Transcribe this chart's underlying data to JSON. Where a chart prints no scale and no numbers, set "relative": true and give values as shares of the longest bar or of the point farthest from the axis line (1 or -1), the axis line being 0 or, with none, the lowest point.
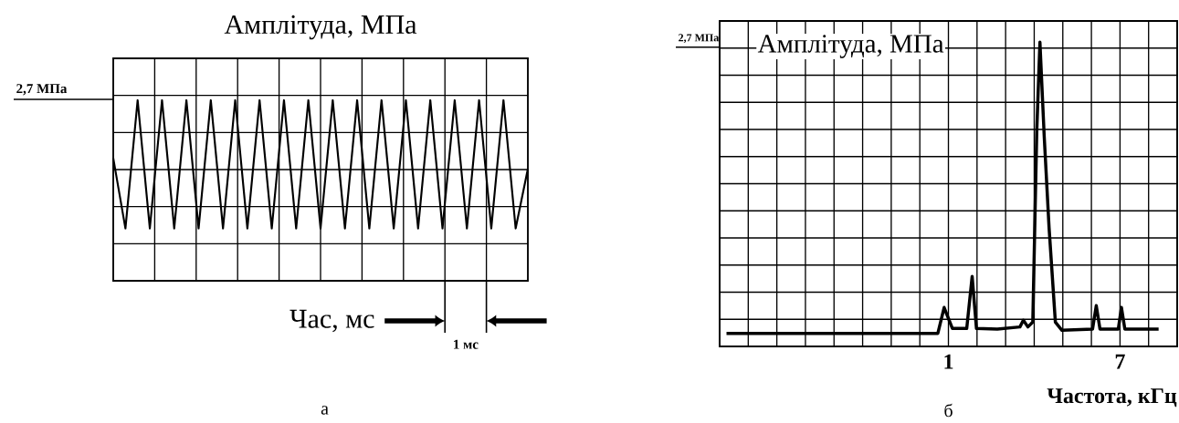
{
  "chart_data": [
    {
      "type": "line",
      "title": "Амплітуда, МПа",
      "xlabel": "Час, мс",
      "relative": true,
      "grid": true,
      "color": "#000000",
      "categories": [
        null,
        null,
        null,
        null,
        null,
        null,
        null,
        null,
        null,
        null,
        null,
        null,
        null,
        null,
        null,
        null,
        null,
        null,
        null,
        null,
        null,
        null,
        null,
        null,
        null,
        null,
        null,
        null,
        null,
        null,
        null,
        null,
        null,
        null,
        null
      ],
      "values": [
        0.68,
        0.29,
        1,
        0.29,
        1,
        0.29,
        1,
        0.29,
        1,
        0.29,
        1,
        0.29,
        1,
        0.29,
        1,
        0.29,
        1,
        0.29,
        1,
        0.29,
        1,
        0.29,
        1,
        0.29,
        1,
        0.29,
        1,
        0.29,
        1,
        0.29,
        1,
        0.29,
        1,
        0.29,
        0.62
      ],
      "annotations": [
        "а",
        "1 мс",
        "2,7 МПа"
      ]
    },
    {
      "type": "line",
      "title": "Амплітуда, МПа",
      "xlabel": "Частота, кГц",
      "relative": true,
      "grid": true,
      "color": "#000000",
      "x": [
        -6.76,
        0.63,
        0.85,
        1.14,
        1.64,
        1.83,
        1.98,
        2.71,
        3.5,
        3.62,
        3.78,
        3.95,
        4.09,
        4.2,
        4.35,
        4.52,
        4.74,
        4.97,
        6.04,
        6.17,
        6.3,
        6.94,
        7.05,
        7.17,
        8.35
      ],
      "values": [
        0.043,
        0.043,
        0.128,
        0.059,
        0.059,
        0.23,
        0.059,
        0.057,
        0.064,
        0.086,
        0.064,
        0.08,
        0.71,
        1,
        0.69,
        0.39,
        0.08,
        0.053,
        0.057,
        0.134,
        0.057,
        0.057,
        0.128,
        0.057,
        0.057
      ],
      "xlim": [
        -7,
        9
      ],
      "xticks": [
        {
          "value": -7,
          "label": null
        },
        {
          "value": -6,
          "label": null
        },
        {
          "value": -5,
          "label": null
        },
        {
          "value": -4,
          "label": null
        },
        {
          "value": -3,
          "label": null
        },
        {
          "value": -2,
          "label": null
        },
        {
          "value": -1,
          "label": null
        },
        {
          "value": 0,
          "label": null
        },
        1,
        {
          "value": 2,
          "label": null
        },
        {
          "value": 3,
          "label": null
        },
        {
          "value": 4,
          "label": null
        },
        {
          "value": 5,
          "label": null
        },
        {
          "value": 6,
          "label": null
        },
        7,
        {
          "value": 8,
          "label": null
        },
        {
          "value": 9,
          "label": null
        }
      ],
      "ref_lines": [
        {
          "axis": "y",
          "value": 0.984,
          "label": "2,7 МПа"
        }
      ],
      "annotations": [
        "б"
      ]
    }
  ]
}
